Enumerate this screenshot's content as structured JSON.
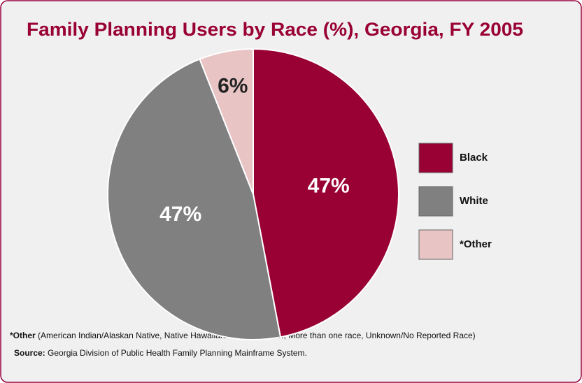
{
  "chart_data": {
    "type": "pie",
    "title": "Family Planning Users by Race (%), Georgia, FY 2005",
    "categories": [
      "Black",
      "White",
      "*Other"
    ],
    "values": [
      47,
      47,
      6
    ],
    "value_labels": [
      "47%",
      "47%",
      "6%"
    ],
    "colors": [
      "#990033",
      "#808080",
      "#e8c4c4"
    ],
    "legend": "right",
    "footnote_label": "*Other",
    "footnote_text": "(American Indian/Alaskan Native, Native Hawaiian/Pacific Islander, More than one race, Unknown/No Reported Race)",
    "source_label": "Source:",
    "source_text": "Georgia Division of Public Health Family Planning Mainframe System."
  }
}
